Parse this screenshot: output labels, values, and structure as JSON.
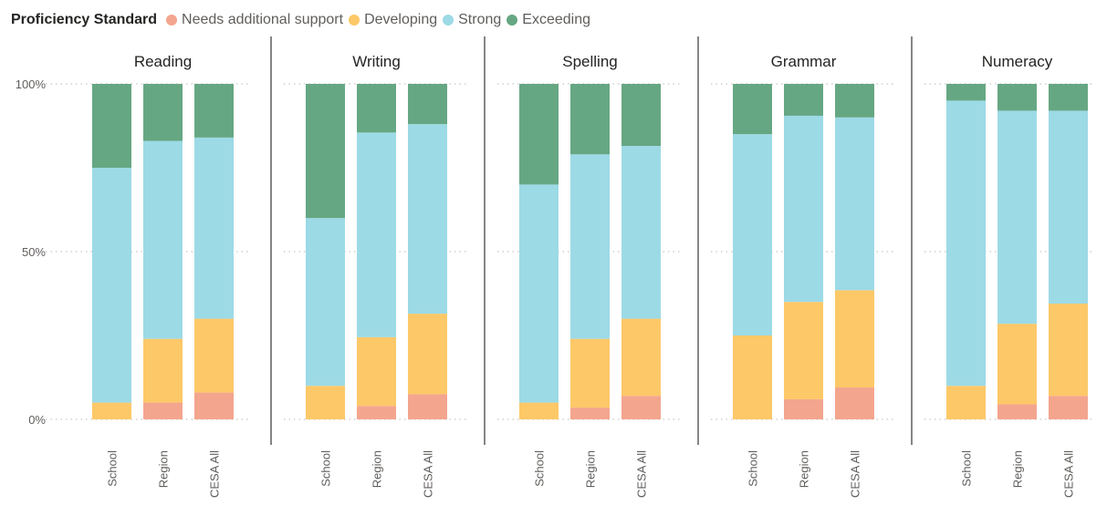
{
  "chart_data": {
    "type": "bar",
    "subtype": "stacked-100",
    "legend": {
      "title": "Proficiency Standard",
      "placement": "top-left",
      "items": [
        {
          "name": "Needs additional support",
          "color": "#f4a58e"
        },
        {
          "name": "Developing",
          "color": "#fdc868"
        },
        {
          "name": "Strong",
          "color": "#9cdae6"
        },
        {
          "name": "Exceeding",
          "color": "#66a783"
        }
      ]
    },
    "y_ticks": [
      "100%",
      "50%",
      "0%"
    ],
    "ylim": [
      0,
      100
    ],
    "grid": true,
    "categories": [
      "School",
      "Region",
      "CESA All"
    ],
    "panels": [
      {
        "title": "Reading",
        "series": [
          {
            "name": "Needs additional support",
            "values": [
              0,
              5,
              8
            ]
          },
          {
            "name": "Developing",
            "values": [
              5,
              19,
              22
            ]
          },
          {
            "name": "Strong",
            "values": [
              70,
              59,
              54
            ]
          },
          {
            "name": "Exceeding",
            "values": [
              25,
              17,
              16
            ]
          }
        ]
      },
      {
        "title": "Writing",
        "series": [
          {
            "name": "Needs additional support",
            "values": [
              0,
              4,
              7.5
            ]
          },
          {
            "name": "Developing",
            "values": [
              10,
              20.5,
              24
            ]
          },
          {
            "name": "Strong",
            "values": [
              50,
              61,
              56.5
            ]
          },
          {
            "name": "Exceeding",
            "values": [
              40,
              14.5,
              12
            ]
          }
        ]
      },
      {
        "title": "Spelling",
        "series": [
          {
            "name": "Needs additional support",
            "values": [
              0,
              3.5,
              7
            ]
          },
          {
            "name": "Developing",
            "values": [
              5,
              20.5,
              23
            ]
          },
          {
            "name": "Strong",
            "values": [
              65,
              55,
              51.5
            ]
          },
          {
            "name": "Exceeding",
            "values": [
              30,
              21,
              18.5
            ]
          }
        ]
      },
      {
        "title": "Grammar",
        "series": [
          {
            "name": "Needs additional support",
            "values": [
              0,
              6,
              9.5
            ]
          },
          {
            "name": "Developing",
            "values": [
              25,
              29,
              29
            ]
          },
          {
            "name": "Strong",
            "values": [
              60,
              55.5,
              51.5
            ]
          },
          {
            "name": "Exceeding",
            "values": [
              15,
              9.5,
              10
            ]
          }
        ]
      },
      {
        "title": "Numeracy",
        "series": [
          {
            "name": "Needs additional support",
            "values": [
              0,
              4.5,
              7
            ]
          },
          {
            "name": "Developing",
            "values": [
              10,
              24,
              27.5
            ]
          },
          {
            "name": "Strong",
            "values": [
              85,
              63.5,
              57.5
            ]
          },
          {
            "name": "Exceeding",
            "values": [
              5,
              8,
              8
            ]
          }
        ]
      }
    ]
  }
}
